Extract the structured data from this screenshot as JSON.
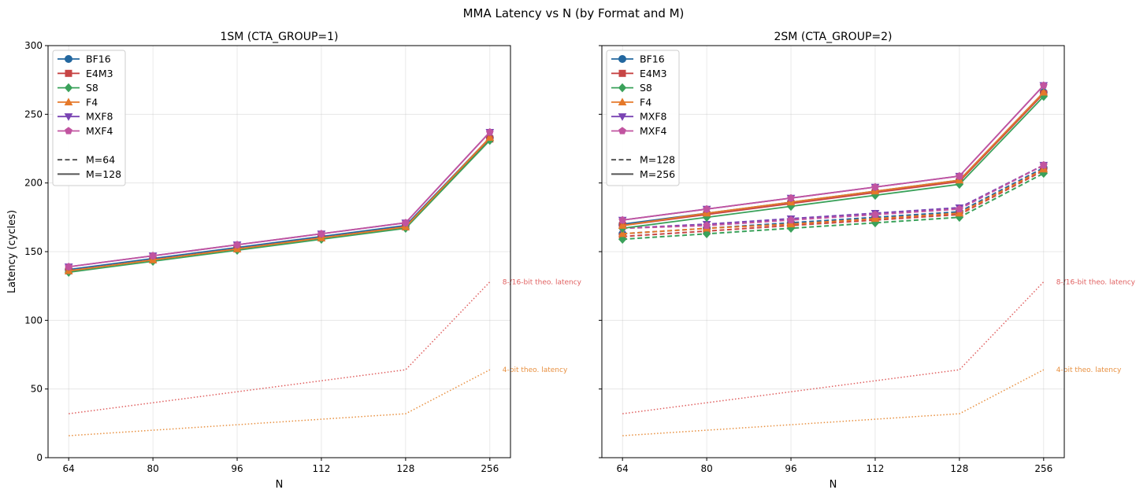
{
  "figure": {
    "title": "MMA Latency vs N (by Format and M)"
  },
  "colors": {
    "BF16": "#23679f",
    "E4M3": "#c74545",
    "S8": "#3aa15a",
    "F4": "#e5792a",
    "MXF8": "#7a44b3",
    "MXF4": "#c154a0",
    "theo_8_16": "#e06060",
    "theo_4": "#e89040",
    "legend_m": "#555555"
  },
  "chart_data": [
    {
      "type": "line",
      "title": "1SM (CTA_GROUP=1)",
      "xlabel": "N",
      "ylabel": "Latency (cycles)",
      "categories": [
        "64",
        "80",
        "96",
        "112",
        "128",
        "256"
      ],
      "yticks": [
        "0",
        "50",
        "100",
        "150",
        "200",
        "250",
        "300"
      ],
      "ylim": [
        0,
        300
      ],
      "grid": true,
      "legend_location": "upper-left",
      "legend_formats": [
        "BF16",
        "E4M3",
        "S8",
        "F4",
        "MXF8",
        "MXF4"
      ],
      "legend_m": {
        "dashed": "M=64",
        "solid": "M=128"
      },
      "series": [
        {
          "name": "BF16",
          "m": "128",
          "style": "solid",
          "marker": "circle",
          "values": [
            137,
            145,
            153,
            161,
            169,
            233
          ]
        },
        {
          "name": "E4M3",
          "m": "128",
          "style": "solid",
          "marker": "square",
          "values": [
            136,
            144,
            152,
            160,
            168,
            232
          ]
        },
        {
          "name": "S8",
          "m": "128",
          "style": "solid",
          "marker": "diamond",
          "values": [
            135,
            143,
            151,
            159,
            167,
            231
          ]
        },
        {
          "name": "F4",
          "m": "128",
          "style": "solid",
          "marker": "triangle-up",
          "values": [
            136,
            144,
            152,
            160,
            168,
            233
          ]
        },
        {
          "name": "MXF8",
          "m": "128",
          "style": "solid",
          "marker": "triangle-down",
          "values": [
            139,
            147,
            155,
            163,
            171,
            237
          ]
        },
        {
          "name": "MXF4",
          "m": "128",
          "style": "solid",
          "marker": "pentagon",
          "values": [
            139,
            147,
            155,
            163,
            171,
            237
          ]
        }
      ],
      "reference_lines": [
        {
          "label": "8-/16-bit theo. latency",
          "color_key": "theo_8_16",
          "values": [
            32,
            40,
            48,
            56,
            64,
            128
          ]
        },
        {
          "label": "4-bit theo. latency",
          "color_key": "theo_4",
          "values": [
            16,
            20,
            24,
            28,
            32,
            64
          ]
        }
      ]
    },
    {
      "type": "line",
      "title": "2SM (CTA_GROUP=2)",
      "xlabel": "N",
      "ylabel": "",
      "categories": [
        "64",
        "80",
        "96",
        "112",
        "128",
        "256"
      ],
      "yticks": [
        "0",
        "50",
        "100",
        "150",
        "200",
        "250",
        "300"
      ],
      "ylim": [
        0,
        300
      ],
      "grid": true,
      "legend_location": "upper-left",
      "legend_formats": [
        "BF16",
        "E4M3",
        "S8",
        "F4",
        "MXF8",
        "MXF4"
      ],
      "legend_m": {
        "dashed": "M=128",
        "solid": "M=256"
      },
      "series": [
        {
          "name": "BF16",
          "m": "128",
          "style": "dashed",
          "marker": "circle",
          "values": [
            163,
            167,
            171,
            175,
            179,
            211
          ]
        },
        {
          "name": "E4M3",
          "m": "128",
          "style": "dashed",
          "marker": "square",
          "values": [
            161,
            165,
            169,
            173,
            177,
            209
          ]
        },
        {
          "name": "S8",
          "m": "128",
          "style": "dashed",
          "marker": "diamond",
          "values": [
            159,
            163,
            167,
            171,
            175,
            207
          ]
        },
        {
          "name": "F4",
          "m": "128",
          "style": "dashed",
          "marker": "triangle-up",
          "values": [
            163,
            167,
            170,
            174,
            178,
            210
          ]
        },
        {
          "name": "MXF8",
          "m": "128",
          "style": "dashed",
          "marker": "triangle-down",
          "values": [
            167,
            170,
            174,
            178,
            182,
            213
          ]
        },
        {
          "name": "MXF4",
          "m": "128",
          "style": "dashed",
          "marker": "pentagon",
          "values": [
            167,
            169,
            173,
            177,
            181,
            213
          ]
        },
        {
          "name": "BF16",
          "m": "256",
          "style": "solid",
          "marker": "circle",
          "values": [
            170,
            178,
            186,
            194,
            202,
            266
          ]
        },
        {
          "name": "E4M3",
          "m": "256",
          "style": "solid",
          "marker": "square",
          "values": [
            169,
            177,
            185,
            193,
            201,
            265
          ]
        },
        {
          "name": "S8",
          "m": "256",
          "style": "solid",
          "marker": "diamond",
          "values": [
            167,
            175,
            183,
            191,
            199,
            263
          ]
        },
        {
          "name": "F4",
          "m": "256",
          "style": "solid",
          "marker": "triangle-up",
          "values": [
            169,
            178,
            186,
            194,
            202,
            266
          ]
        },
        {
          "name": "MXF8",
          "m": "256",
          "style": "solid",
          "marker": "triangle-down",
          "values": [
            173,
            181,
            189,
            197,
            205,
            271
          ]
        },
        {
          "name": "MXF4",
          "m": "256",
          "style": "solid",
          "marker": "pentagon",
          "values": [
            173,
            181,
            189,
            197,
            205,
            271
          ]
        }
      ],
      "reference_lines": [
        {
          "label": "8-/16-bit theo. latency",
          "color_key": "theo_8_16",
          "values": [
            32,
            40,
            48,
            56,
            64,
            128
          ]
        },
        {
          "label": "4-bit theo. latency",
          "color_key": "theo_4",
          "values": [
            16,
            20,
            24,
            28,
            32,
            64
          ]
        }
      ]
    }
  ]
}
